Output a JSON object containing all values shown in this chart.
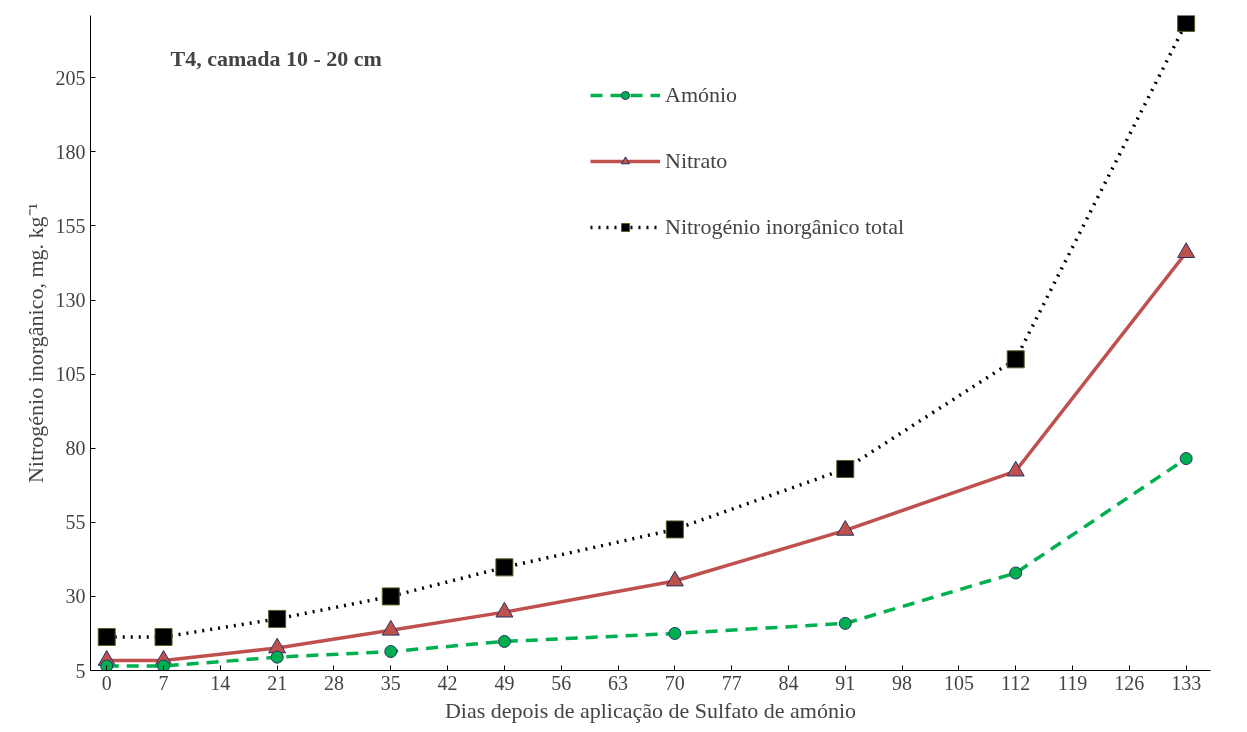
{
  "chart_data": {
    "type": "line",
    "title": "T4, camada 10 - 20 cm",
    "xlabel": "Dias depois de aplicação de Sulfato de amónio",
    "ylabel": "Nitrogénio inorgânico, mg. kg⁻¹",
    "x": [
      0,
      7,
      21,
      35,
      49,
      70,
      91,
      112,
      133
    ],
    "series": [
      {
        "name": "Amónio",
        "color": "#00b050",
        "marker": "circle",
        "line_style": "dashed",
        "values": [
          6.5,
          6.5,
          9.5,
          11.4,
          14.8,
          17.5,
          20.9,
          37.9,
          76.5
        ]
      },
      {
        "name": "Nitrato",
        "color": "#c0504d",
        "marker": "triangle",
        "line_style": "solid",
        "values": [
          8.4,
          8.4,
          12.6,
          18.6,
          24.7,
          35.2,
          52.3,
          72.3,
          146
        ]
      },
      {
        "name": "Nitrogénio inorgânico total",
        "color": "#000000",
        "marker": "square",
        "line_style": "dotted",
        "values": [
          16.3,
          16.3,
          22.4,
          30,
          39.8,
          52.6,
          73,
          110,
          223.5
        ]
      }
    ],
    "xlim": [
      -2,
      136
    ],
    "xticks": [
      0,
      7,
      14,
      21,
      28,
      35,
      42,
      49,
      56,
      63,
      70,
      77,
      84,
      91,
      98,
      105,
      112,
      119,
      126,
      133
    ],
    "ylim": [
      5,
      226
    ],
    "yticks": [
      5,
      30,
      55,
      80,
      105,
      130,
      155,
      180,
      205
    ],
    "grid": false,
    "legend": "top"
  }
}
